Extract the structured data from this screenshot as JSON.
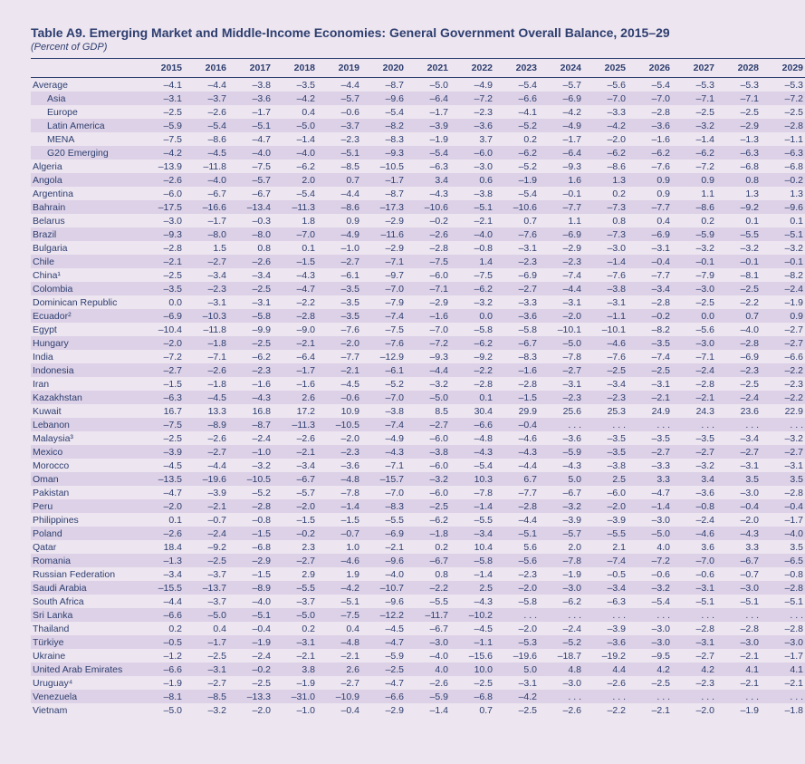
{
  "title": "Table A9. Emerging Market and Middle-Income Economies: General Government Overall Balance, 2015–29",
  "subtitle": "(Percent of GDP)",
  "colors": {
    "background": "#ede5f0",
    "band": "#dcd1e6",
    "text": "#2d3e6f",
    "border": "#2d3e6f"
  },
  "typography": {
    "title_fontsize": 14,
    "subtitle_fontsize": 11,
    "cell_fontsize": 10.5,
    "family": "Arial"
  },
  "years": [
    "2015",
    "2016",
    "2017",
    "2018",
    "2019",
    "2020",
    "2021",
    "2022",
    "2023",
    "2024",
    "2025",
    "2026",
    "2027",
    "2028",
    "2029"
  ],
  "rows": [
    {
      "label": "Average",
      "indent": 0,
      "band": false,
      "vals": [
        "–4.1",
        "–4.4",
        "–3.8",
        "–3.5",
        "–4.4",
        "–8.7",
        "–5.0",
        "–4.9",
        "–5.4",
        "–5.7",
        "–5.6",
        "–5.4",
        "–5.3",
        "–5.3",
        "–5.3"
      ]
    },
    {
      "label": "Asia",
      "indent": 1,
      "band": true,
      "vals": [
        "–3.1",
        "–3.7",
        "–3.6",
        "–4.2",
        "–5.7",
        "–9.6",
        "–6.4",
        "–7.2",
        "–6.6",
        "–6.9",
        "–7.0",
        "–7.0",
        "–7.1",
        "–7.1",
        "–7.2"
      ]
    },
    {
      "label": "Europe",
      "indent": 1,
      "band": false,
      "vals": [
        "–2.5",
        "–2.6",
        "–1.7",
        "0.4",
        "–0.6",
        "–5.4",
        "–1.7",
        "–2.3",
        "–4.1",
        "–4.2",
        "–3.3",
        "–2.8",
        "–2.5",
        "–2.5",
        "–2.5"
      ]
    },
    {
      "label": "Latin America",
      "indent": 1,
      "band": true,
      "vals": [
        "–5.9",
        "–5.4",
        "–5.1",
        "–5.0",
        "–3.7",
        "–8.2",
        "–3.9",
        "–3.6",
        "–5.2",
        "–4.9",
        "–4.2",
        "–3.6",
        "–3.2",
        "–2.9",
        "–2.8"
      ]
    },
    {
      "label": "MENA",
      "indent": 1,
      "band": false,
      "vals": [
        "–7.5",
        "–8.6",
        "–4.7",
        "–1.4",
        "–2.3",
        "–8.3",
        "–1.9",
        "3.7",
        "0.2",
        "–1.7",
        "–2.0",
        "–1.6",
        "–1.4",
        "–1.3",
        "–1.1"
      ]
    },
    {
      "label": "G20 Emerging",
      "indent": 1,
      "band": true,
      "vals": [
        "–4.2",
        "–4.5",
        "–4.0",
        "–4.0",
        "–5.1",
        "–9.3",
        "–5.4",
        "–6.0",
        "–6.2",
        "–6.4",
        "–6.2",
        "–6.2",
        "–6.2",
        "–6.3",
        "–6.3"
      ]
    },
    {
      "label": "Algeria",
      "indent": 0,
      "band": false,
      "vals": [
        "–13.9",
        "–11.8",
        "–7.5",
        "–6.2",
        "–8.5",
        "–10.5",
        "–6.3",
        "–3.0",
        "–5.2",
        "–9.3",
        "–8.6",
        "–7.6",
        "–7.2",
        "–6.8",
        "–6.8"
      ]
    },
    {
      "label": "Angola",
      "indent": 0,
      "band": true,
      "vals": [
        "–2.6",
        "–4.0",
        "–5.7",
        "2.0",
        "0.7",
        "–1.7",
        "3.4",
        "0.6",
        "–1.9",
        "1.6",
        "1.3",
        "0.9",
        "0.9",
        "0.8",
        "–0.2"
      ]
    },
    {
      "label": "Argentina",
      "indent": 0,
      "band": false,
      "vals": [
        "–6.0",
        "–6.7",
        "–6.7",
        "–5.4",
        "–4.4",
        "–8.7",
        "–4.3",
        "–3.8",
        "–5.4",
        "–0.1",
        "0.2",
        "0.9",
        "1.1",
        "1.3",
        "1.3"
      ]
    },
    {
      "label": "Bahrain",
      "indent": 0,
      "band": true,
      "vals": [
        "–17.5",
        "–16.6",
        "–13.4",
        "–11.3",
        "–8.6",
        "–17.3",
        "–10.6",
        "–5.1",
        "–10.6",
        "–7.7",
        "–7.3",
        "–7.7",
        "–8.6",
        "–9.2",
        "–9.6"
      ]
    },
    {
      "label": "Belarus",
      "indent": 0,
      "band": false,
      "vals": [
        "–3.0",
        "–1.7",
        "–0.3",
        "1.8",
        "0.9",
        "–2.9",
        "–0.2",
        "–2.1",
        "0.7",
        "1.1",
        "0.8",
        "0.4",
        "0.2",
        "0.1",
        "0.1"
      ]
    },
    {
      "label": "Brazil",
      "indent": 0,
      "band": true,
      "vals": [
        "–9.3",
        "–8.0",
        "–8.0",
        "–7.0",
        "–4.9",
        "–11.6",
        "–2.6",
        "–4.0",
        "–7.6",
        "–6.9",
        "–7.3",
        "–6.9",
        "–5.9",
        "–5.5",
        "–5.1"
      ]
    },
    {
      "label": "Bulgaria",
      "indent": 0,
      "band": false,
      "vals": [
        "–2.8",
        "1.5",
        "0.8",
        "0.1",
        "–1.0",
        "–2.9",
        "–2.8",
        "–0.8",
        "–3.1",
        "–2.9",
        "–3.0",
        "–3.1",
        "–3.2",
        "–3.2",
        "–3.2"
      ]
    },
    {
      "label": "Chile",
      "indent": 0,
      "band": true,
      "vals": [
        "–2.1",
        "–2.7",
        "–2.6",
        "–1.5",
        "–2.7",
        "–7.1",
        "–7.5",
        "1.4",
        "–2.3",
        "–2.3",
        "–1.4",
        "–0.4",
        "–0.1",
        "–0.1",
        "–0.1"
      ]
    },
    {
      "label": "China¹",
      "indent": 0,
      "band": false,
      "vals": [
        "–2.5",
        "–3.4",
        "–3.4",
        "–4.3",
        "–6.1",
        "–9.7",
        "–6.0",
        "–7.5",
        "–6.9",
        "–7.4",
        "–7.6",
        "–7.7",
        "–7.9",
        "–8.1",
        "–8.2"
      ]
    },
    {
      "label": "Colombia",
      "indent": 0,
      "band": true,
      "vals": [
        "–3.5",
        "–2.3",
        "–2.5",
        "–4.7",
        "–3.5",
        "–7.0",
        "–7.1",
        "–6.2",
        "–2.7",
        "–4.4",
        "–3.8",
        "–3.4",
        "–3.0",
        "–2.5",
        "–2.4"
      ]
    },
    {
      "label": "Dominican Republic",
      "indent": 0,
      "band": false,
      "vals": [
        "0.0",
        "–3.1",
        "–3.1",
        "–2.2",
        "–3.5",
        "–7.9",
        "–2.9",
        "–3.2",
        "–3.3",
        "–3.1",
        "–3.1",
        "–2.8",
        "–2.5",
        "–2.2",
        "–1.9"
      ]
    },
    {
      "label": "Ecuador²",
      "indent": 0,
      "band": true,
      "vals": [
        "–6.9",
        "–10.3",
        "–5.8",
        "–2.8",
        "–3.5",
        "–7.4",
        "–1.6",
        "0.0",
        "–3.6",
        "–2.0",
        "–1.1",
        "–0.2",
        "0.0",
        "0.7",
        "0.9"
      ]
    },
    {
      "label": "Egypt",
      "indent": 0,
      "band": false,
      "vals": [
        "–10.4",
        "–11.8",
        "–9.9",
        "–9.0",
        "–7.6",
        "–7.5",
        "–7.0",
        "–5.8",
        "–5.8",
        "–10.1",
        "–10.1",
        "–8.2",
        "–5.6",
        "–4.0",
        "–2.7"
      ]
    },
    {
      "label": "Hungary",
      "indent": 0,
      "band": true,
      "vals": [
        "–2.0",
        "–1.8",
        "–2.5",
        "–2.1",
        "–2.0",
        "–7.6",
        "–7.2",
        "–6.2",
        "–6.7",
        "–5.0",
        "–4.6",
        "–3.5",
        "–3.0",
        "–2.8",
        "–2.7"
      ]
    },
    {
      "label": "India",
      "indent": 0,
      "band": false,
      "vals": [
        "–7.2",
        "–7.1",
        "–6.2",
        "–6.4",
        "–7.7",
        "–12.9",
        "–9.3",
        "–9.2",
        "–8.3",
        "–7.8",
        "–7.6",
        "–7.4",
        "–7.1",
        "–6.9",
        "–6.6"
      ]
    },
    {
      "label": "Indonesia",
      "indent": 0,
      "band": true,
      "vals": [
        "–2.7",
        "–2.6",
        "–2.3",
        "–1.7",
        "–2.1",
        "–6.1",
        "–4.4",
        "–2.2",
        "–1.6",
        "–2.7",
        "–2.5",
        "–2.5",
        "–2.4",
        "–2.3",
        "–2.2"
      ]
    },
    {
      "label": "Iran",
      "indent": 0,
      "band": false,
      "vals": [
        "–1.5",
        "–1.8",
        "–1.6",
        "–1.6",
        "–4.5",
        "–5.2",
        "–3.2",
        "–2.8",
        "–2.8",
        "–3.1",
        "–3.4",
        "–3.1",
        "–2.8",
        "–2.5",
        "–2.3"
      ]
    },
    {
      "label": "Kazakhstan",
      "indent": 0,
      "band": true,
      "vals": [
        "–6.3",
        "–4.5",
        "–4.3",
        "2.6",
        "–0.6",
        "–7.0",
        "–5.0",
        "0.1",
        "–1.5",
        "–2.3",
        "–2.3",
        "–2.1",
        "–2.1",
        "–2.4",
        "–2.2"
      ]
    },
    {
      "label": "Kuwait",
      "indent": 0,
      "band": false,
      "vals": [
        "16.7",
        "13.3",
        "16.8",
        "17.2",
        "10.9",
        "–3.8",
        "8.5",
        "30.4",
        "29.9",
        "25.6",
        "25.3",
        "24.9",
        "24.3",
        "23.6",
        "22.9"
      ]
    },
    {
      "label": "Lebanon",
      "indent": 0,
      "band": true,
      "vals": [
        "–7.5",
        "–8.9",
        "–8.7",
        "–11.3",
        "–10.5",
        "–7.4",
        "–2.7",
        "–6.6",
        "–0.4",
        ". . .",
        ". . .",
        ". . .",
        ". . .",
        ". . .",
        ". . ."
      ]
    },
    {
      "label": "Malaysia³",
      "indent": 0,
      "band": false,
      "vals": [
        "–2.5",
        "–2.6",
        "–2.4",
        "–2.6",
        "–2.0",
        "–4.9",
        "–6.0",
        "–4.8",
        "–4.6",
        "–3.6",
        "–3.5",
        "–3.5",
        "–3.5",
        "–3.4",
        "–3.2"
      ]
    },
    {
      "label": "Mexico",
      "indent": 0,
      "band": true,
      "vals": [
        "–3.9",
        "–2.7",
        "–1.0",
        "–2.1",
        "–2.3",
        "–4.3",
        "–3.8",
        "–4.3",
        "–4.3",
        "–5.9",
        "–3.5",
        "–2.7",
        "–2.7",
        "–2.7",
        "–2.7"
      ]
    },
    {
      "label": "Morocco",
      "indent": 0,
      "band": false,
      "vals": [
        "–4.5",
        "–4.4",
        "–3.2",
        "–3.4",
        "–3.6",
        "–7.1",
        "–6.0",
        "–5.4",
        "–4.4",
        "–4.3",
        "–3.8",
        "–3.3",
        "–3.2",
        "–3.1",
        "–3.1"
      ]
    },
    {
      "label": "Oman",
      "indent": 0,
      "band": true,
      "vals": [
        "–13.5",
        "–19.6",
        "–10.5",
        "–6.7",
        "–4.8",
        "–15.7",
        "–3.2",
        "10.3",
        "6.7",
        "5.0",
        "2.5",
        "3.3",
        "3.4",
        "3.5",
        "3.5"
      ]
    },
    {
      "label": "Pakistan",
      "indent": 0,
      "band": false,
      "vals": [
        "–4.7",
        "–3.9",
        "–5.2",
        "–5.7",
        "–7.8",
        "–7.0",
        "–6.0",
        "–7.8",
        "–7.7",
        "–6.7",
        "–6.0",
        "–4.7",
        "–3.6",
        "–3.0",
        "–2.8"
      ]
    },
    {
      "label": "Peru",
      "indent": 0,
      "band": true,
      "vals": [
        "–2.0",
        "–2.1",
        "–2.8",
        "–2.0",
        "–1.4",
        "–8.3",
        "–2.5",
        "–1.4",
        "–2.8",
        "–3.2",
        "–2.0",
        "–1.4",
        "–0.8",
        "–0.4",
        "–0.4"
      ]
    },
    {
      "label": "Philippines",
      "indent": 0,
      "band": false,
      "vals": [
        "0.1",
        "–0.7",
        "–0.8",
        "–1.5",
        "–1.5",
        "–5.5",
        "–6.2",
        "–5.5",
        "–4.4",
        "–3.9",
        "–3.9",
        "–3.0",
        "–2.4",
        "–2.0",
        "–1.7"
      ]
    },
    {
      "label": "Poland",
      "indent": 0,
      "band": true,
      "vals": [
        "–2.6",
        "–2.4",
        "–1.5",
        "–0.2",
        "–0.7",
        "–6.9",
        "–1.8",
        "–3.4",
        "–5.1",
        "–5.7",
        "–5.5",
        "–5.0",
        "–4.6",
        "–4.3",
        "–4.0"
      ]
    },
    {
      "label": "Qatar",
      "indent": 0,
      "band": false,
      "vals": [
        "18.4",
        "–9.2",
        "–6.8",
        "2.3",
        "1.0",
        "–2.1",
        "0.2",
        "10.4",
        "5.6",
        "2.0",
        "2.1",
        "4.0",
        "3.6",
        "3.3",
        "3.5"
      ]
    },
    {
      "label": "Romania",
      "indent": 0,
      "band": true,
      "vals": [
        "–1.3",
        "–2.5",
        "–2.9",
        "–2.7",
        "–4.6",
        "–9.6",
        "–6.7",
        "–5.8",
        "–5.6",
        "–7.8",
        "–7.4",
        "–7.2",
        "–7.0",
        "–6.7",
        "–6.5"
      ]
    },
    {
      "label": "Russian Federation",
      "indent": 0,
      "band": false,
      "vals": [
        "–3.4",
        "–3.7",
        "–1.5",
        "2.9",
        "1.9",
        "–4.0",
        "0.8",
        "–1.4",
        "–2.3",
        "–1.9",
        "–0.5",
        "–0.6",
        "–0.6",
        "–0.7",
        "–0.8"
      ]
    },
    {
      "label": "Saudi Arabia",
      "indent": 0,
      "band": true,
      "vals": [
        "–15.5",
        "–13.7",
        "–8.9",
        "–5.5",
        "–4.2",
        "–10.7",
        "–2.2",
        "2.5",
        "–2.0",
        "–3.0",
        "–3.4",
        "–3.2",
        "–3.1",
        "–3.0",
        "–2.8"
      ]
    },
    {
      "label": "South Africa",
      "indent": 0,
      "band": false,
      "vals": [
        "–4.4",
        "–3.7",
        "–4.0",
        "–3.7",
        "–5.1",
        "–9.6",
        "–5.5",
        "–4.3",
        "–5.8",
        "–6.2",
        "–6.3",
        "–5.4",
        "–5.1",
        "–5.1",
        "–5.1"
      ]
    },
    {
      "label": "Sri Lanka",
      "indent": 0,
      "band": true,
      "vals": [
        "–6.6",
        "–5.0",
        "–5.1",
        "–5.0",
        "–7.5",
        "–12.2",
        "–11.7",
        "–10.2",
        ". . .",
        ". . .",
        ". . .",
        ". . .",
        ". . .",
        ". . .",
        ". . ."
      ]
    },
    {
      "label": "Thailand",
      "indent": 0,
      "band": false,
      "vals": [
        "0.2",
        "0.4",
        "–0.4",
        "0.2",
        "0.4",
        "–4.5",
        "–6.7",
        "–4.5",
        "–2.0",
        "–2.4",
        "–3.9",
        "–3.0",
        "–2.8",
        "–2.8",
        "–2.8"
      ]
    },
    {
      "label": "Türkiye",
      "indent": 0,
      "band": true,
      "vals": [
        "–0.5",
        "–1.7",
        "–1.9",
        "–3.1",
        "–4.8",
        "–4.7",
        "–3.0",
        "–1.1",
        "–5.3",
        "–5.2",
        "–3.6",
        "–3.0",
        "–3.1",
        "–3.0",
        "–3.0"
      ]
    },
    {
      "label": "Ukraine",
      "indent": 0,
      "band": false,
      "vals": [
        "–1.2",
        "–2.5",
        "–2.4",
        "–2.1",
        "–2.1",
        "–5.9",
        "–4.0",
        "–15.6",
        "–19.6",
        "–18.7",
        "–19.2",
        "–9.5",
        "–2.7",
        "–2.1",
        "–1.7"
      ]
    },
    {
      "label": "United Arab Emirates",
      "indent": 0,
      "band": true,
      "vals": [
        "–6.6",
        "–3.1",
        "–0.2",
        "3.8",
        "2.6",
        "–2.5",
        "4.0",
        "10.0",
        "5.0",
        "4.8",
        "4.4",
        "4.2",
        "4.2",
        "4.1",
        "4.1"
      ]
    },
    {
      "label": "Uruguay⁴",
      "indent": 0,
      "band": false,
      "vals": [
        "–1.9",
        "–2.7",
        "–2.5",
        "–1.9",
        "–2.7",
        "–4.7",
        "–2.6",
        "–2.5",
        "–3.1",
        "–3.0",
        "–2.6",
        "–2.5",
        "–2.3",
        "–2.1",
        "–2.1"
      ]
    },
    {
      "label": "Venezuela",
      "indent": 0,
      "band": true,
      "vals": [
        "–8.1",
        "–8.5",
        "–13.3",
        "–31.0",
        "–10.9",
        "–6.6",
        "–5.9",
        "–6.8",
        "–4.2",
        ". . .",
        ". . .",
        ". . .",
        ". . .",
        ". . .",
        ". . ."
      ]
    },
    {
      "label": "Vietnam",
      "indent": 0,
      "band": false,
      "vals": [
        "–5.0",
        "–3.2",
        "–2.0",
        "–1.0",
        "–0.4",
        "–2.9",
        "–1.4",
        "0.7",
        "–2.5",
        "–2.6",
        "–2.2",
        "–2.1",
        "–2.0",
        "–1.9",
        "–1.8"
      ]
    }
  ]
}
